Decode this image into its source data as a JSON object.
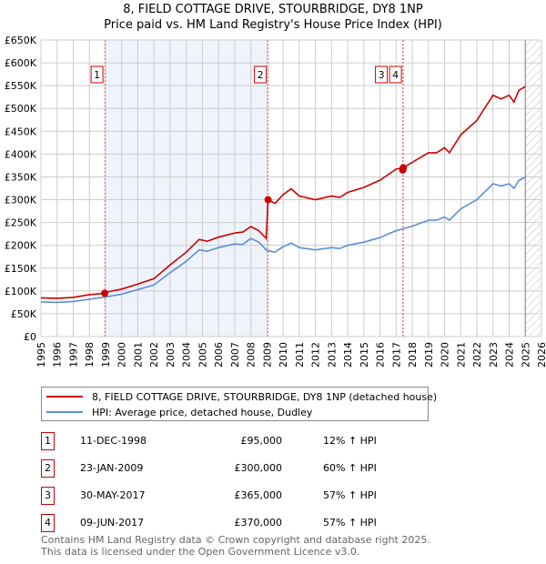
{
  "title_line1": "8, FIELD COTTAGE DRIVE, STOURBRIDGE, DY8 1NP",
  "title_line2": "Price paid vs. HM Land Registry's House Price Index (HPI)",
  "chart_data": {
    "type": "line",
    "xlim": [
      1995,
      2026
    ],
    "ylim": [
      0,
      650000
    ],
    "x_ticks": [
      1995,
      1996,
      1997,
      1998,
      1999,
      2000,
      2001,
      2002,
      2003,
      2004,
      2005,
      2006,
      2007,
      2008,
      2009,
      2010,
      2011,
      2012,
      2013,
      2014,
      2015,
      2016,
      2017,
      2018,
      2019,
      2020,
      2021,
      2022,
      2023,
      2024,
      2025,
      2026
    ],
    "y_ticks": [
      0,
      50000,
      100000,
      150000,
      200000,
      250000,
      300000,
      350000,
      400000,
      450000,
      500000,
      550000,
      600000,
      650000
    ],
    "y_tick_labels": [
      "£0",
      "£50K",
      "£100K",
      "£150K",
      "£200K",
      "£250K",
      "£300K",
      "£350K",
      "£400K",
      "£450K",
      "£500K",
      "£550K",
      "£600K",
      "£650K"
    ],
    "grid": true,
    "shaded_range": [
      1998.95,
      2009.07
    ],
    "forecast_hatch_from": 2025.0,
    "series": [
      {
        "name": "8, FIELD COTTAGE DRIVE, STOURBRIDGE, DY8 1NP (detached house)",
        "color": "#cc0000",
        "x": [
          1995,
          1996,
          1997,
          1998,
          1998.95,
          1999,
          2000,
          2001,
          2002,
          2003,
          2004,
          2004.8,
          2005.3,
          2006,
          2007,
          2007.5,
          2008,
          2008.5,
          2008.95,
          2009.07,
          2009.5,
          2010,
          2010.5,
          2011,
          2012,
          2013,
          2013.5,
          2014,
          2015,
          2016,
          2016.5,
          2017,
          2017.44,
          2018,
          2019,
          2019.5,
          2020,
          2020.3,
          2021,
          2022,
          2023,
          2023.5,
          2024,
          2024.3,
          2024.6,
          2025
        ],
        "y": [
          85000,
          84000,
          86000,
          92000,
          95000,
          97000,
          104000,
          115000,
          127000,
          157000,
          185000,
          213000,
          209000,
          218000,
          227000,
          229000,
          241000,
          232000,
          215000,
          300000,
          292000,
          311000,
          324000,
          308000,
          300000,
          308000,
          305000,
          316000,
          327000,
          343000,
          355000,
          367000,
          370000,
          382000,
          403000,
          403000,
          414000,
          403000,
          442000,
          474000,
          529000,
          521000,
          529000,
          514000,
          540000,
          548000
        ]
      },
      {
        "name": "HPI: Average price, detached house, Dudley",
        "color": "#5b8fd4",
        "x": [
          1995,
          1996,
          1997,
          1998,
          1999,
          2000,
          2001,
          2002,
          2003,
          2004,
          2004.8,
          2005.3,
          2006,
          2007,
          2007.5,
          2008,
          2008.5,
          2008.95,
          2009.07,
          2009.5,
          2010,
          2010.5,
          2011,
          2012,
          2013,
          2013.5,
          2014,
          2015,
          2016,
          2016.5,
          2017,
          2018,
          2019,
          2019.5,
          2020,
          2020.3,
          2021,
          2022,
          2023,
          2023.5,
          2024,
          2024.3,
          2024.6,
          2025
        ],
        "y": [
          76000,
          75000,
          77000,
          82000,
          87000,
          93000,
          103000,
          113000,
          140000,
          165000,
          190000,
          187000,
          195000,
          203000,
          202000,
          215000,
          207000,
          190000,
          188000,
          185000,
          197000,
          205000,
          195000,
          190000,
          195000,
          193000,
          200000,
          207000,
          217000,
          225000,
          232000,
          242000,
          255000,
          255000,
          262000,
          255000,
          280000,
          300000,
          335000,
          330000,
          335000,
          325000,
          342000,
          350000
        ]
      }
    ],
    "sales": [
      {
        "id": "1",
        "x": 1998.95,
        "price": 95000
      },
      {
        "id": "2",
        "x": 2009.07,
        "price": 300000
      },
      {
        "id": "3",
        "x": 2017.41,
        "price": 365000
      },
      {
        "id": "4",
        "x": 2017.44,
        "price": 370000
      }
    ]
  },
  "legend": {
    "property": "8, FIELD COTTAGE DRIVE, STOURBRIDGE, DY8 1NP (detached house)",
    "hpi": "HPI: Average price, detached house, Dudley"
  },
  "transactions": [
    {
      "num": "1",
      "date": "11-DEC-1998",
      "price": "£95,000",
      "hpi": "12% ↑ HPI"
    },
    {
      "num": "2",
      "date": "23-JAN-2009",
      "price": "£300,000",
      "hpi": "60% ↑ HPI"
    },
    {
      "num": "3",
      "date": "30-MAY-2017",
      "price": "£365,000",
      "hpi": "57% ↑ HPI"
    },
    {
      "num": "4",
      "date": "09-JUN-2017",
      "price": "£370,000",
      "hpi": "57% ↑ HPI"
    }
  ],
  "footer_line1": "Contains HM Land Registry data © Crown copyright and database right 2025.",
  "footer_line2": "This data is licensed under the Open Government Licence v3.0."
}
